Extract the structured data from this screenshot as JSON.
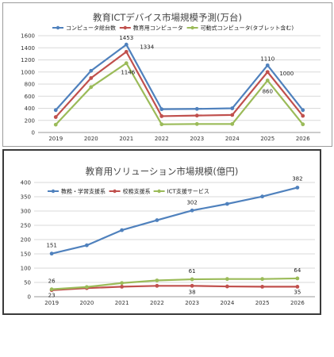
{
  "chart_data": [
    {
      "type": "line",
      "title": "教育ICTデバイス市場規模予測(万台)",
      "x": [
        "2019",
        "2020",
        "2021",
        "2022",
        "2023",
        "2024",
        "2025",
        "2026"
      ],
      "ylim": [
        0,
        1600
      ],
      "yticks": [
        0,
        200,
        400,
        600,
        800,
        1000,
        1200,
        1400,
        1600
      ],
      "grid": true,
      "legend": "top",
      "series": [
        {
          "name": "コンピュータ総台数",
          "color": "#4f81bd",
          "values": [
            370,
            1020,
            1453,
            385,
            390,
            400,
            1110,
            370
          ]
        },
        {
          "name": "教育用コンピュータ",
          "color": "#c0504d",
          "values": [
            255,
            900,
            1334,
            270,
            280,
            290,
            1000,
            275
          ]
        },
        {
          "name": "可動式コンピュータ(タブレット含む)",
          "color": "#9bbb59",
          "values": [
            130,
            750,
            1146,
            135,
            140,
            140,
            860,
            135
          ]
        }
      ],
      "data_labels": [
        {
          "series": 0,
          "index": 2,
          "text": "1453"
        },
        {
          "series": 1,
          "index": 2,
          "text": "1334"
        },
        {
          "series": 2,
          "index": 2,
          "text": "1146"
        },
        {
          "series": 0,
          "index": 6,
          "text": "1110"
        },
        {
          "series": 1,
          "index": 6,
          "text": "1000"
        },
        {
          "series": 2,
          "index": 6,
          "text": "860"
        }
      ]
    },
    {
      "type": "line",
      "title": "教育用ソリューション市場規模(億円)",
      "x": [
        "2019",
        "2020",
        "2021",
        "2022",
        "2023",
        "2024",
        "2025",
        "2026"
      ],
      "ylim": [
        0,
        400
      ],
      "yticks": [
        0,
        50,
        100,
        150,
        200,
        250,
        300,
        350,
        400
      ],
      "grid": true,
      "legend": "top-left",
      "series": [
        {
          "name": "教務・学習支援系",
          "color": "#4f81bd",
          "values": [
            151,
            180,
            233,
            268,
            302,
            325,
            351,
            382
          ]
        },
        {
          "name": "校務支援系",
          "color": "#c0504d",
          "values": [
            23,
            30,
            35,
            38,
            38,
            36,
            35,
            35
          ]
        },
        {
          "name": "ICT支援サービス",
          "color": "#9bbb59",
          "values": [
            26,
            34,
            48,
            57,
            61,
            62,
            62,
            64
          ]
        }
      ],
      "data_labels": [
        {
          "series": 0,
          "index": 0,
          "text": "151"
        },
        {
          "series": 0,
          "index": 4,
          "text": "302"
        },
        {
          "series": 0,
          "index": 7,
          "text": "382"
        },
        {
          "series": 2,
          "index": 0,
          "text": "26"
        },
        {
          "series": 2,
          "index": 4,
          "text": "61"
        },
        {
          "series": 2,
          "index": 7,
          "text": "64"
        },
        {
          "series": 1,
          "index": 0,
          "text": "23"
        },
        {
          "series": 1,
          "index": 4,
          "text": "38"
        },
        {
          "series": 1,
          "index": 7,
          "text": "35"
        }
      ]
    }
  ]
}
